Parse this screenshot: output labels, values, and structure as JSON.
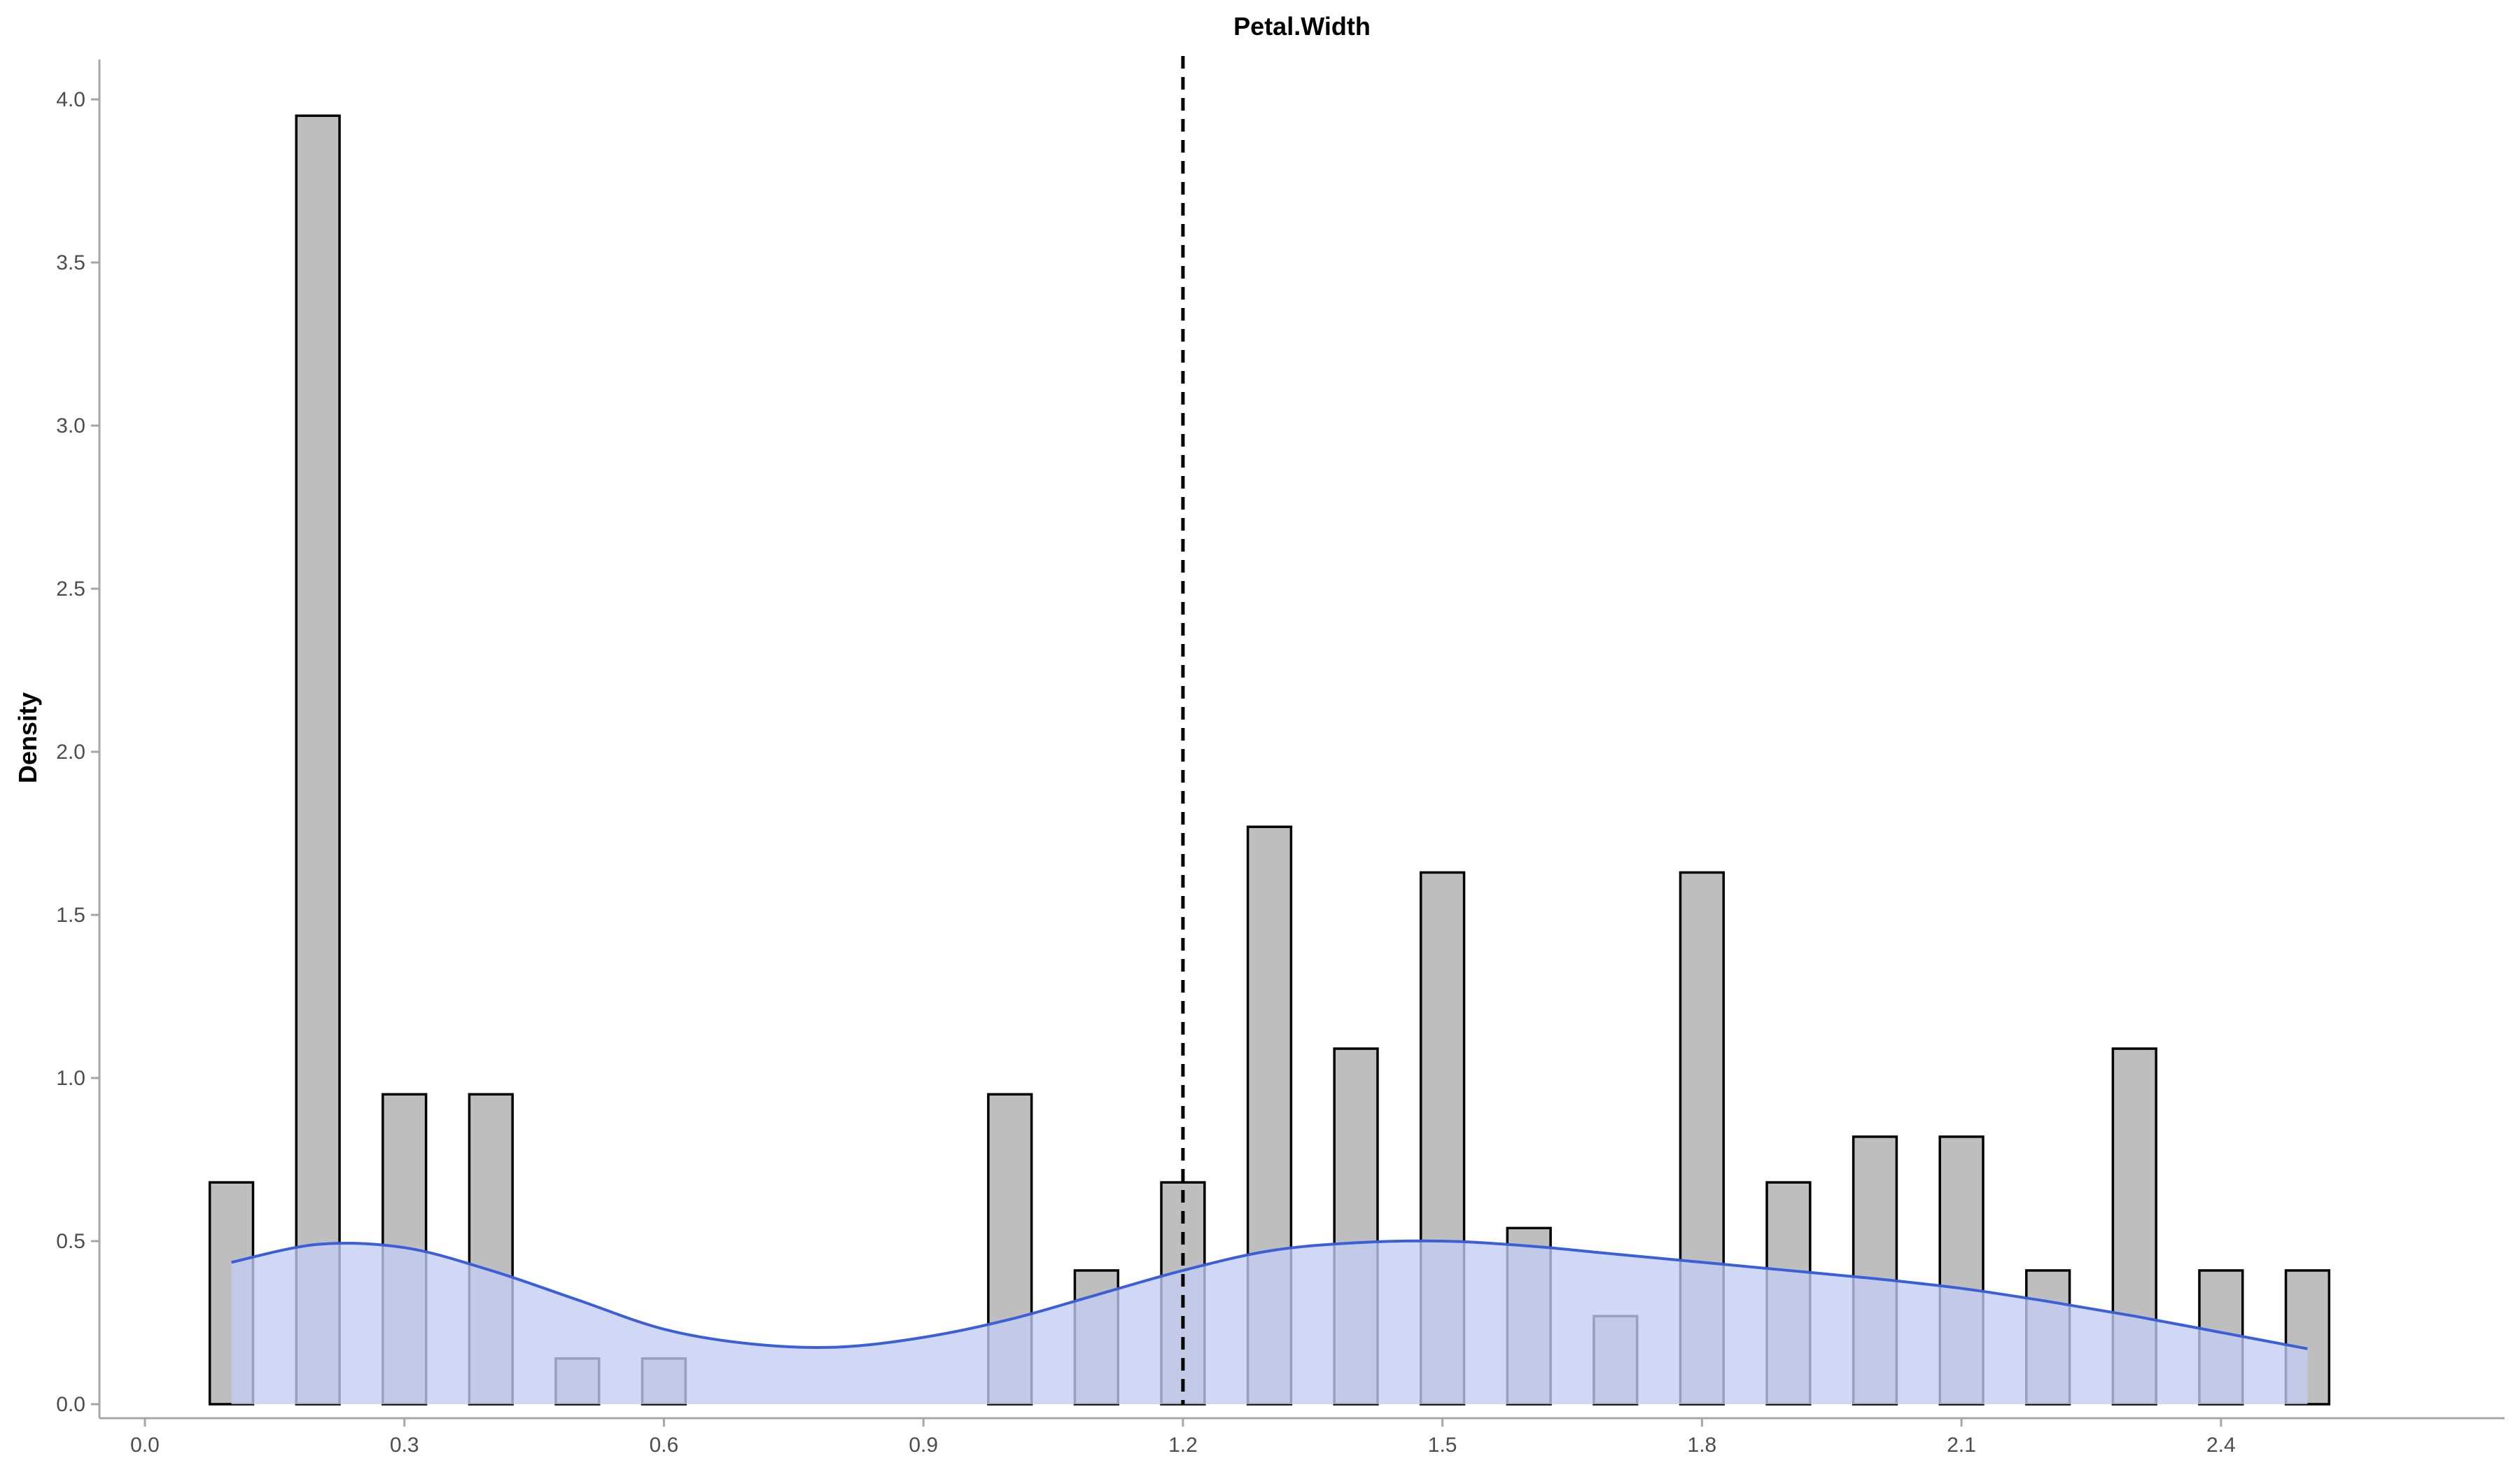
{
  "chart_data": {
    "type": "bar",
    "title": "Petal.Width",
    "xlabel": "",
    "ylabel": "Density",
    "xlim": [
      0.0,
      2.6
    ],
    "ylim": [
      0.0,
      4.1
    ],
    "x_ticks": [
      "0.0",
      "0.3",
      "0.6",
      "0.9",
      "1.2",
      "1.5",
      "1.8",
      "2.1",
      "2.4"
    ],
    "y_ticks": [
      "0.0",
      "0.5",
      "1.0",
      "1.5",
      "2.0",
      "2.5",
      "3.0",
      "3.5",
      "4.0"
    ],
    "bin_width": 0.05,
    "bins": [
      {
        "x": 0.1,
        "density": 0.68
      },
      {
        "x": 0.2,
        "density": 3.95
      },
      {
        "x": 0.3,
        "density": 0.95
      },
      {
        "x": 0.4,
        "density": 0.95
      },
      {
        "x": 0.5,
        "density": 0.14
      },
      {
        "x": 0.6,
        "density": 0.14
      },
      {
        "x": 1.0,
        "density": 0.95
      },
      {
        "x": 1.1,
        "density": 0.41
      },
      {
        "x": 1.2,
        "density": 0.68
      },
      {
        "x": 1.3,
        "density": 1.77
      },
      {
        "x": 1.4,
        "density": 1.09
      },
      {
        "x": 1.5,
        "density": 1.63
      },
      {
        "x": 1.6,
        "density": 0.54
      },
      {
        "x": 1.7,
        "density": 0.27
      },
      {
        "x": 1.8,
        "density": 1.63
      },
      {
        "x": 1.9,
        "density": 0.68
      },
      {
        "x": 2.0,
        "density": 0.82
      },
      {
        "x": 2.1,
        "density": 0.82
      },
      {
        "x": 2.2,
        "density": 0.41
      },
      {
        "x": 2.3,
        "density": 1.09
      },
      {
        "x": 2.4,
        "density": 0.41
      },
      {
        "x": 2.5,
        "density": 0.41
      }
    ],
    "density_curve": {
      "x": [
        0.1,
        0.2,
        0.3,
        0.4,
        0.5,
        0.6,
        0.7,
        0.8,
        0.9,
        1.0,
        1.1,
        1.2,
        1.3,
        1.4,
        1.5,
        1.6,
        1.7,
        1.8,
        1.9,
        2.0,
        2.1,
        2.2,
        2.3,
        2.4,
        2.5
      ],
      "y": [
        0.435,
        0.49,
        0.48,
        0.41,
        0.32,
        0.23,
        0.185,
        0.175,
        0.205,
        0.26,
        0.335,
        0.41,
        0.47,
        0.495,
        0.5,
        0.485,
        0.46,
        0.435,
        0.41,
        0.385,
        0.355,
        0.315,
        0.27,
        0.22,
        0.17
      ],
      "line_color": "#3a5fd9",
      "fill_color": "#c4cdf4"
    },
    "vline": {
      "x": 1.2,
      "style": "dashed"
    },
    "bar_fill": "#bebebe",
    "bar_stroke": "#000000",
    "grid": false,
    "legend": "none"
  }
}
